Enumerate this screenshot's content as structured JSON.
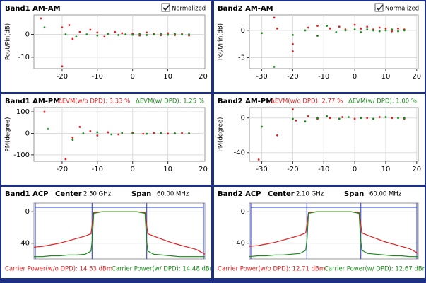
{
  "chart_data": [
    {
      "type": "scatter",
      "title": "Band1 AM-AM",
      "normalized_label": "Normalized",
      "checked": true,
      "ylabel": "Pout/Pin(dB)",
      "xlim": [
        -28,
        20.5
      ],
      "ylim": [
        -15,
        8.5
      ],
      "xticks": [
        -20,
        -10,
        0,
        10,
        20
      ],
      "yticks": [
        0,
        -10
      ],
      "grid": true,
      "series": [
        {
          "color": "#e02020",
          "x": [
            -26,
            -20,
            -18,
            -15,
            -12,
            -8,
            -5,
            -3,
            0,
            2,
            4,
            6,
            8,
            10,
            12,
            14,
            16,
            -20,
            -17,
            -10
          ],
          "values": [
            7,
            3,
            4,
            1,
            2,
            -1,
            1,
            0.5,
            0.3,
            -0.5,
            0.8,
            0.2,
            -0.4,
            0.5,
            -0.3,
            0.2,
            -0.5,
            -14,
            -2,
            0.8
          ]
        },
        {
          "color": "#1a8a1a",
          "x": [
            -25,
            -19,
            -16,
            -13,
            -10,
            -7,
            -4,
            -2,
            0,
            2,
            4,
            6,
            8,
            10,
            12,
            14,
            16
          ],
          "values": [
            3,
            0,
            -1,
            0,
            -0.5,
            0.2,
            -0.3,
            0,
            -0.2,
            0.1,
            -0.3,
            0,
            0.2,
            -0.2,
            0.1,
            -0.1,
            0
          ]
        }
      ]
    },
    {
      "type": "scatter",
      "title": "Band2 AM-AM",
      "normalized_label": "Normalized",
      "checked": true,
      "ylabel": "Pout/Pin(dB)",
      "xlim": [
        -34,
        20.5
      ],
      "ylim": [
        -4.2,
        1.7
      ],
      "xticks": [
        -30,
        -20,
        -10,
        0,
        10,
        20
      ],
      "yticks": [
        0,
        -3
      ],
      "grid": true,
      "series": [
        {
          "color": "#e02020",
          "x": [
            -26,
            -20,
            -20,
            -15,
            -12,
            -8,
            -5,
            -3,
            0,
            2,
            4,
            6,
            8,
            10,
            12,
            14,
            16,
            -25
          ],
          "values": [
            1.4,
            -1.5,
            -2.3,
            0.3,
            0.5,
            0.2,
            0.4,
            0.1,
            0.6,
            0.2,
            0.4,
            0.1,
            0.3,
            0.2,
            -0.1,
            0.2,
            0.1,
            0.2
          ]
        },
        {
          "color": "#1a8a1a",
          "x": [
            -30,
            -26,
            -20,
            -16,
            -12,
            -9,
            -6,
            -3,
            0,
            2,
            4,
            6,
            8,
            10,
            12,
            14,
            16
          ],
          "values": [
            -0.3,
            -4,
            -0.5,
            0,
            -0.6,
            0.5,
            -0.2,
            0,
            0.1,
            -0.2,
            0.1,
            0,
            -0.1,
            0,
            0.1,
            -0.1,
            0
          ]
        }
      ]
    },
    {
      "type": "scatter",
      "title": "Band1 AM-PM",
      "ylabel": "PM(degree)",
      "evm": [
        {
          "text": "ΔEVM(w/o DPD): 3.33 %",
          "color": "#e02020"
        },
        {
          "text": "ΔEVM(w/ DPD): 1.25 %",
          "color": "#1a8a1a"
        }
      ],
      "xlim": [
        -28,
        20.5
      ],
      "ylim": [
        -130,
        120
      ],
      "xticks": [
        -20,
        -10,
        0,
        10,
        20
      ],
      "yticks": [
        100,
        0,
        -100
      ],
      "grid": true,
      "series": [
        {
          "color": "#e02020",
          "x": [
            -25,
            -19,
            -17,
            -15,
            -12,
            -10,
            -7,
            -4,
            0,
            3,
            6,
            10,
            14,
            16
          ],
          "values": [
            100,
            -120,
            -20,
            30,
            10,
            -10,
            5,
            -5,
            3,
            -2,
            2,
            -1,
            1,
            0
          ]
        },
        {
          "color": "#1a8a1a",
          "x": [
            -24,
            -17,
            -14,
            -10,
            -6,
            -3,
            0,
            4,
            8,
            12,
            16
          ],
          "values": [
            20,
            -30,
            0,
            5,
            -5,
            2,
            0,
            -2,
            1,
            0,
            0
          ]
        }
      ]
    },
    {
      "type": "scatter",
      "title": "Band2 AM-PM",
      "ylabel": "PM(degree)",
      "evm": [
        {
          "text": "ΔEVM(w/o DPD): 2.77 %",
          "color": "#e02020"
        },
        {
          "text": "ΔEVM(w/ DPD): 1.00 %",
          "color": "#1a8a1a"
        }
      ],
      "xlim": [
        -34,
        20.5
      ],
      "ylim": [
        -50,
        12
      ],
      "xticks": [
        -30,
        -20,
        -10,
        0,
        10,
        20
      ],
      "yticks": [
        0,
        -40
      ],
      "grid": true,
      "series": [
        {
          "color": "#e02020",
          "x": [
            -31,
            -25,
            -20,
            -19,
            -15,
            -12,
            -8,
            -4,
            0,
            4,
            8,
            12,
            16
          ],
          "values": [
            -48,
            -20,
            10,
            -3,
            2,
            -1,
            0,
            1,
            -1,
            0,
            1,
            0,
            -1
          ]
        },
        {
          "color": "#1a8a1a",
          "x": [
            -30,
            -20,
            -16,
            -12,
            -9,
            -5,
            -2,
            2,
            6,
            10,
            14,
            16
          ],
          "values": [
            -10,
            -1,
            -4,
            0,
            2,
            -1,
            1,
            0,
            -1,
            1,
            0,
            0
          ]
        }
      ]
    },
    {
      "type": "line",
      "title": "Band1 ACP",
      "center_label": "Center",
      "center": "2.50 GHz",
      "span_label": "Span",
      "span": "60.00 MHz",
      "footer": [
        {
          "text": "Carrier Power(w/o DPD):  14.53 dBm",
          "color": "#e02020"
        },
        {
          "text": "Carrier Power(w/ DPD):  14.48 dBm",
          "color": "#1a8a1a"
        }
      ],
      "xlim": [
        -30,
        30
      ],
      "ylim": [
        -60,
        11
      ],
      "yticks": [
        0,
        -40
      ],
      "grid": true,
      "x": [
        -30,
        -27,
        -24,
        -21,
        -18,
        -15,
        -12,
        -10,
        -9.5,
        -9,
        -6,
        -3,
        0,
        3,
        6,
        9,
        9.5,
        10,
        12,
        15,
        18,
        21,
        24,
        27,
        30
      ],
      "series": [
        {
          "color": "#e02020",
          "values": [
            -45,
            -44,
            -42,
            -40,
            -37,
            -34,
            -31,
            -28,
            -15,
            -1,
            0,
            0,
            0,
            0,
            0,
            -1,
            -15,
            -28,
            -31,
            -35,
            -39,
            -42,
            -45,
            -48,
            -54
          ]
        },
        {
          "color": "#1a8a1a",
          "values": [
            -57,
            -57,
            -56,
            -56,
            -55,
            -55,
            -54,
            -50,
            -35,
            -2,
            0,
            0,
            0,
            0,
            0,
            -2,
            -35,
            -50,
            -54,
            -55,
            -56,
            -57,
            -57,
            -57,
            -57
          ]
        }
      ]
    },
    {
      "type": "line",
      "title": "Band2 ACP",
      "center_label": "Center",
      "center": "2.10 GHz",
      "span_label": "Span",
      "span": "60.00 MHz",
      "footer": [
        {
          "text": "Carrier Power(w/o DPD):  12.71 dBm",
          "color": "#e02020"
        },
        {
          "text": "Carrier Power(w/ DPD):  12.67 dBm",
          "color": "#1a8a1a"
        }
      ],
      "xlim": [
        -30,
        30
      ],
      "ylim": [
        -60,
        11
      ],
      "yticks": [
        0,
        -40
      ],
      "grid": true,
      "x": [
        -30,
        -27,
        -24,
        -21,
        -18,
        -15,
        -12,
        -10,
        -9.5,
        -9,
        -6,
        -3,
        0,
        3,
        6,
        9,
        9.5,
        10,
        12,
        15,
        18,
        21,
        24,
        27,
        30
      ],
      "series": [
        {
          "color": "#e02020",
          "values": [
            -44,
            -43,
            -41,
            -39,
            -36,
            -33,
            -30,
            -27,
            -14,
            -1,
            0,
            0,
            0,
            0,
            0,
            -1,
            -14,
            -27,
            -30,
            -34,
            -38,
            -41,
            -44,
            -47,
            -53
          ]
        },
        {
          "color": "#1a8a1a",
          "values": [
            -57,
            -56,
            -56,
            -55,
            -55,
            -54,
            -53,
            -49,
            -34,
            -2,
            0,
            0,
            0,
            0,
            0,
            -2,
            -34,
            -49,
            -53,
            -54,
            -55,
            -56,
            -56,
            -57,
            -57
          ]
        }
      ]
    }
  ]
}
